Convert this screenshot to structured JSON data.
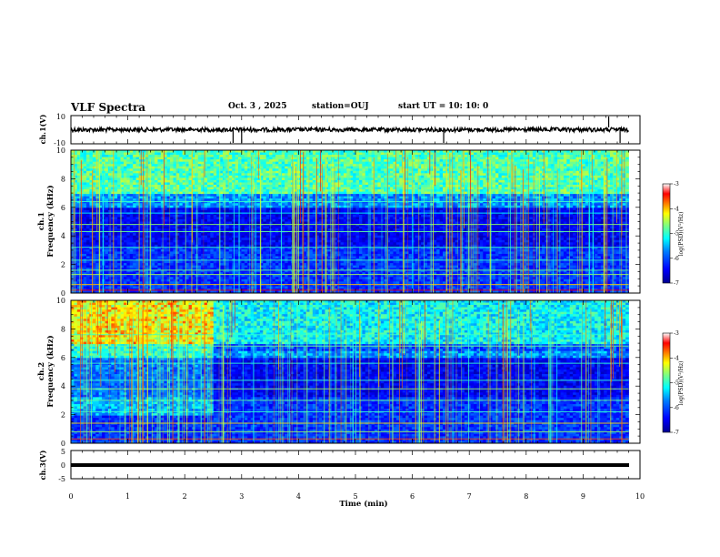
{
  "header": {
    "title": "VLF Spectra",
    "date": "Oct. 3 , 2025",
    "station": "station=OUJ",
    "start": "start UT =",
    "start_time": "10: 10: 0"
  },
  "chart_data": [
    {
      "type": "line",
      "panel": "ch1-waveform",
      "ylabel": "ch.1(V)",
      "ylim": [
        -10,
        10
      ],
      "yticks": [
        "10",
        "-10"
      ],
      "xlim": [
        0,
        10
      ]
    },
    {
      "type": "heatmap",
      "panel": "ch1-spectrogram",
      "ylabel_line1": "ch.1",
      "ylabel_line2": "Frequency (kHz)",
      "ylim": [
        0,
        10
      ],
      "yticks": [
        "0",
        "2",
        "4",
        "6",
        "8",
        "10"
      ],
      "data_extent_min": 9.8,
      "colorbar": {
        "label": "log(PSD)(V²/Hz)",
        "ticks": [
          "-3",
          "-4",
          "-5",
          "-6",
          "-7"
        ],
        "range": [
          -7,
          -3
        ]
      }
    },
    {
      "type": "heatmap",
      "panel": "ch2-spectrogram",
      "ylabel_line1": "ch.2",
      "ylabel_line2": "Frequency (kHz)",
      "ylim": [
        0,
        10
      ],
      "yticks": [
        "0",
        "2",
        "4",
        "6",
        "8",
        "10"
      ],
      "data_extent_min": 9.8,
      "colorbar": {
        "label": "log(PSD)(V²/Hz)",
        "ticks": [
          "-3",
          "-4",
          "-5",
          "-6",
          "-7"
        ],
        "range": [
          -7,
          -3
        ]
      }
    },
    {
      "type": "line",
      "panel": "ch3-waveform",
      "ylabel": "ch.3(V)",
      "ylim": [
        -5,
        5
      ],
      "yticks": [
        "5",
        "0",
        "-5"
      ],
      "xlim": [
        0,
        10
      ],
      "xticks": [
        "0",
        "1",
        "2",
        "3",
        "4",
        "5",
        "6",
        "7",
        "8",
        "9",
        "10"
      ],
      "xlabel": "Time (min)"
    }
  ],
  "colors": {
    "background": "#ffffff",
    "axis": "#000000",
    "colormap": [
      "#00008f",
      "#0000ff",
      "#007fff",
      "#00ffff",
      "#7fff7f",
      "#ffff00",
      "#ff7f00",
      "#ff0000",
      "#ffffff"
    ]
  }
}
